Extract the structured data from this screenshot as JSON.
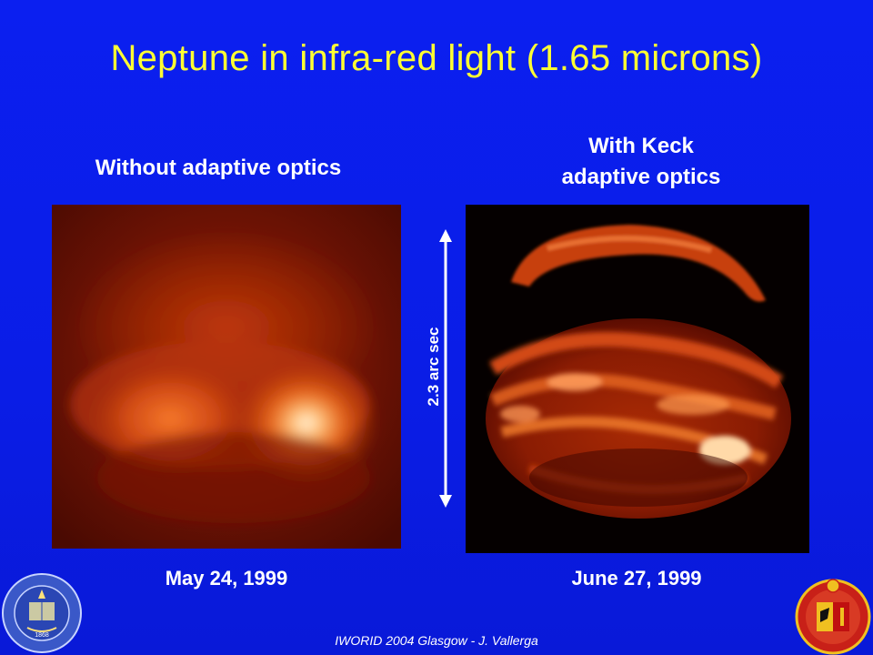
{
  "slide": {
    "title": "Neptune in infra-red light (1.65 microns)",
    "left_caption": "Without adaptive optics",
    "right_caption_line1": "With Keck",
    "right_caption_line2": "adaptive optics",
    "left_date": "May 24, 1999",
    "right_date": "June 27, 1999",
    "scale_label": "2.3 arc sec",
    "footer": "IWORID 2004 Glasgow - J. Vallerga"
  },
  "logos": {
    "left_seal_text": "THE UNIVERSITY OF CALIFORNIA",
    "left_seal_year": "1868",
    "right_seal": "geneva-coat-of-arms"
  },
  "colors": {
    "background": "#0a1ee8",
    "title": "#ffff33",
    "text": "#ffffff"
  }
}
